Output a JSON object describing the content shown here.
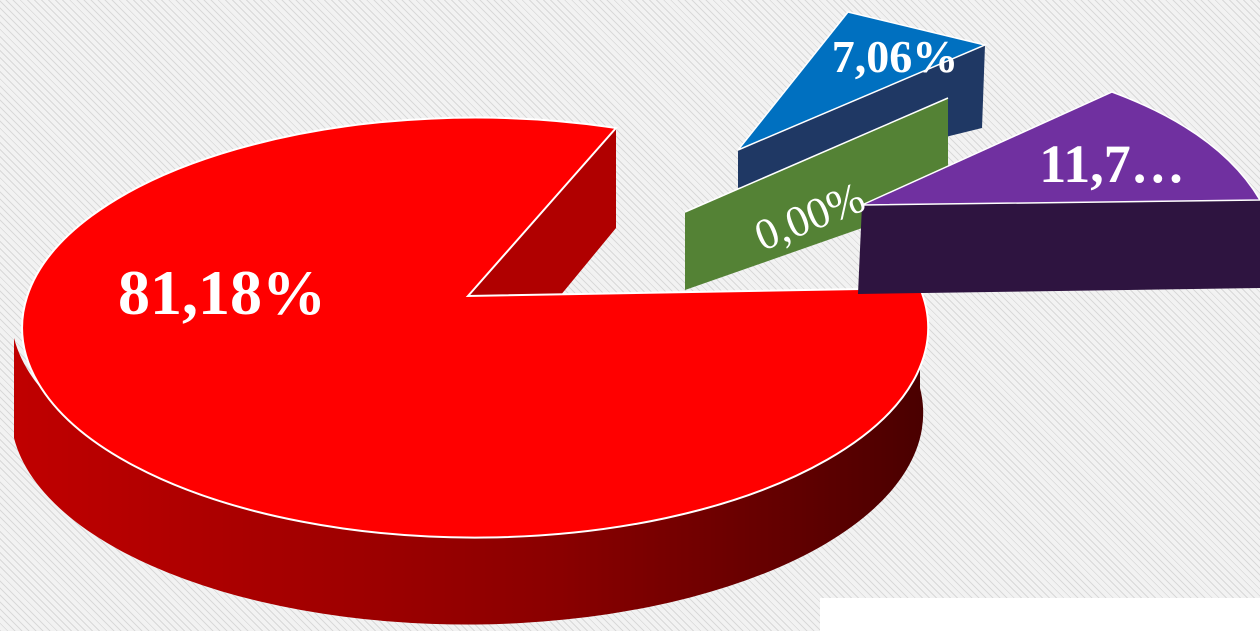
{
  "chart_data": {
    "type": "pie",
    "three_d": true,
    "slices": [
      {
        "value": 81.18,
        "label": "81,18%",
        "color": "#ff0000"
      },
      {
        "value": 7.06,
        "label": "7,06%",
        "color": "#0070c0"
      },
      {
        "value": 0.0,
        "label": "0,00%",
        "color": "#548235"
      },
      {
        "value": 11.76,
        "label": "11,7…",
        "color": "#7030a0"
      }
    ]
  }
}
